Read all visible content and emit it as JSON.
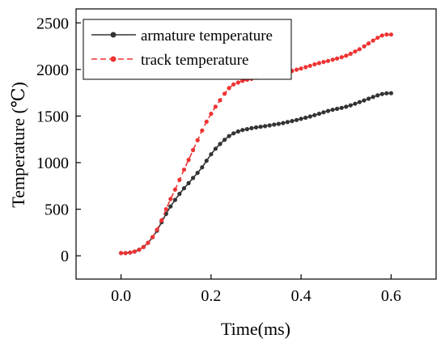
{
  "chart_data": {
    "type": "line",
    "xlabel": "Time(ms)",
    "ylabel": "Temperature (℃)",
    "xlim": [
      -0.1,
      0.7
    ],
    "ylim": [
      -250,
      2650
    ],
    "xticks": [
      0.0,
      0.2,
      0.4,
      0.6
    ],
    "xtick_labels": [
      "0.0",
      "0.2",
      "0.4",
      "0.6"
    ],
    "yticks": [
      0,
      500,
      1000,
      1500,
      2000,
      2500
    ],
    "ytick_labels": [
      "0",
      "500",
      "1000",
      "1500",
      "2000",
      "2500"
    ],
    "grid": false,
    "legend_position": "top-left",
    "series": [
      {
        "name": "armature temperature",
        "color": "#333333",
        "line_style": "solid",
        "marker": "circle",
        "x": [
          0.0,
          0.01,
          0.02,
          0.03,
          0.04,
          0.05,
          0.06,
          0.07,
          0.08,
          0.09,
          0.1,
          0.11,
          0.12,
          0.13,
          0.14,
          0.15,
          0.16,
          0.17,
          0.18,
          0.19,
          0.2,
          0.21,
          0.22,
          0.23,
          0.24,
          0.25,
          0.26,
          0.27,
          0.28,
          0.29,
          0.3,
          0.31,
          0.32,
          0.33,
          0.34,
          0.35,
          0.36,
          0.37,
          0.38,
          0.39,
          0.4,
          0.41,
          0.42,
          0.43,
          0.44,
          0.45,
          0.46,
          0.47,
          0.48,
          0.49,
          0.5,
          0.51,
          0.52,
          0.53,
          0.54,
          0.55,
          0.56,
          0.57,
          0.58,
          0.59,
          0.6
        ],
        "y": [
          30,
          30,
          35,
          45,
          65,
          95,
          140,
          200,
          270,
          360,
          450,
          530,
          600,
          665,
          725,
          780,
          835,
          890,
          950,
          1020,
          1090,
          1150,
          1200,
          1245,
          1285,
          1315,
          1335,
          1350,
          1360,
          1370,
          1378,
          1385,
          1392,
          1400,
          1408,
          1416,
          1425,
          1435,
          1447,
          1458,
          1470,
          1482,
          1495,
          1510,
          1525,
          1540,
          1555,
          1567,
          1578,
          1588,
          1600,
          1615,
          1632,
          1650,
          1668,
          1686,
          1705,
          1722,
          1737,
          1744,
          1745
        ]
      },
      {
        "name": "track temperature",
        "color": "#ee3333",
        "line_style": "dashed",
        "marker": "circle",
        "x": [
          0.0,
          0.01,
          0.02,
          0.03,
          0.04,
          0.05,
          0.06,
          0.07,
          0.08,
          0.09,
          0.1,
          0.11,
          0.12,
          0.13,
          0.14,
          0.15,
          0.16,
          0.17,
          0.18,
          0.19,
          0.2,
          0.21,
          0.22,
          0.23,
          0.24,
          0.25,
          0.26,
          0.27,
          0.28,
          0.29,
          0.3,
          0.31,
          0.32,
          0.33,
          0.34,
          0.35,
          0.36,
          0.37,
          0.38,
          0.39,
          0.4,
          0.41,
          0.42,
          0.43,
          0.44,
          0.45,
          0.46,
          0.47,
          0.48,
          0.49,
          0.5,
          0.51,
          0.52,
          0.53,
          0.54,
          0.55,
          0.56,
          0.57,
          0.58,
          0.59,
          0.6
        ],
        "y": [
          30,
          30,
          35,
          45,
          65,
          95,
          140,
          200,
          280,
          380,
          500,
          610,
          710,
          815,
          925,
          1030,
          1135,
          1240,
          1345,
          1440,
          1525,
          1600,
          1670,
          1740,
          1800,
          1840,
          1860,
          1878,
          1890,
          1900,
          1910,
          1920,
          1928,
          1935,
          1942,
          1950,
          1960,
          1972,
          1985,
          1998,
          2010,
          2025,
          2040,
          2055,
          2068,
          2080,
          2092,
          2105,
          2118,
          2132,
          2148,
          2168,
          2192,
          2218,
          2248,
          2280,
          2310,
          2340,
          2365,
          2375,
          2375
        ]
      }
    ]
  }
}
